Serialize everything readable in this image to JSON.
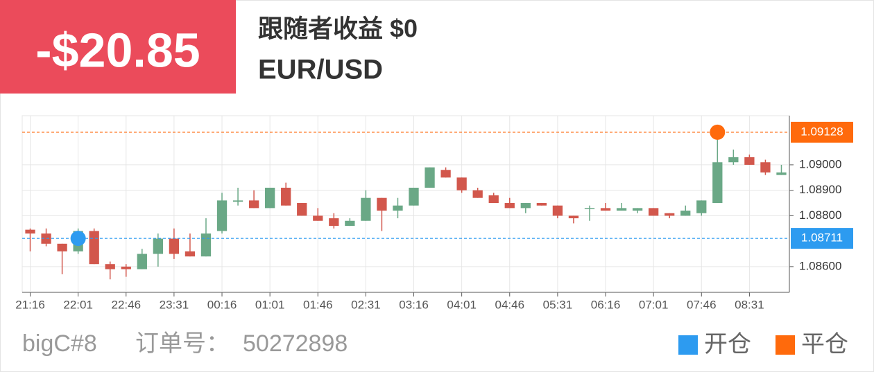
{
  "header": {
    "pnl": "-$20.85",
    "follower_profit": "跟随者收益 $0",
    "symbol": "EUR/USD"
  },
  "chart_data": {
    "type": "candlestick",
    "categories": [
      "21:16",
      null,
      null,
      "22:01",
      null,
      null,
      "22:46",
      null,
      null,
      "23:31",
      null,
      null,
      "00:16",
      null,
      null,
      "01:01",
      null,
      null,
      "01:46",
      null,
      null,
      "02:31",
      null,
      null,
      "03:16",
      null,
      null,
      "04:01",
      null,
      null,
      "04:46",
      null,
      null,
      "05:31",
      null,
      null,
      "06:16",
      null,
      null,
      "07:01",
      null,
      null,
      "07:46",
      null,
      null,
      "08:31",
      null,
      null
    ],
    "open": [
      1.08745,
      1.0873,
      1.0869,
      1.0866,
      1.0874,
      1.0861,
      1.086,
      1.0859,
      1.0865,
      1.0871,
      1.0866,
      1.0864,
      1.0874,
      1.08855,
      1.0886,
      1.0883,
      1.0891,
      1.0885,
      1.088,
      1.0879,
      1.0876,
      1.0878,
      1.0887,
      1.0882,
      1.0884,
      1.0891,
      1.0898,
      1.0895,
      1.089,
      1.0888,
      1.0885,
      1.0883,
      1.0885,
      1.0884,
      1.088,
      1.0883,
      1.0883,
      1.0882,
      1.0882,
      1.0883,
      1.0881,
      1.088,
      1.0881,
      1.0885,
      1.0901,
      1.0903,
      1.0901,
      1.0896
    ],
    "high": [
      1.0875,
      1.0875,
      1.0869,
      1.0875,
      1.0875,
      1.0862,
      1.0861,
      1.0867,
      1.0873,
      1.0875,
      1.0873,
      1.0879,
      1.0889,
      1.0891,
      1.089,
      1.0891,
      1.0893,
      1.0885,
      1.0883,
      1.0881,
      1.0879,
      1.089,
      1.0887,
      1.0887,
      1.0891,
      1.0899,
      1.0899,
      1.0895,
      1.0891,
      1.0889,
      1.0887,
      1.0885,
      1.0885,
      1.0884,
      1.088,
      1.0884,
      1.0885,
      1.0885,
      1.0883,
      1.0883,
      1.0881,
      1.0884,
      1.0886,
      1.0913,
      1.0906,
      1.0904,
      1.0902,
      1.09
    ],
    "low": [
      1.0866,
      1.0868,
      1.0857,
      1.0865,
      1.0861,
      1.0855,
      1.0856,
      1.0859,
      1.086,
      1.0863,
      1.0864,
      1.0864,
      1.0873,
      1.0884,
      1.0883,
      1.0883,
      1.0884,
      1.088,
      1.0878,
      1.0875,
      1.0876,
      1.0878,
      1.0874,
      1.0879,
      1.0884,
      1.0891,
      1.0895,
      1.0889,
      1.0887,
      1.0885,
      1.0883,
      1.0881,
      1.0884,
      1.0879,
      1.0877,
      1.0878,
      1.0882,
      1.0882,
      1.0881,
      1.088,
      1.0879,
      1.088,
      1.088,
      1.0885,
      1.09,
      1.09,
      1.0896,
      1.0896
    ],
    "close": [
      1.0873,
      1.0869,
      1.0866,
      1.0874,
      1.0861,
      1.0859,
      1.0859,
      1.0865,
      1.0871,
      1.0865,
      1.0864,
      1.0873,
      1.0886,
      1.0886,
      1.0883,
      1.0891,
      1.0884,
      1.088,
      1.0878,
      1.0876,
      1.0878,
      1.0887,
      1.0882,
      1.0884,
      1.0891,
      1.0899,
      1.0895,
      1.089,
      1.0887,
      1.0885,
      1.0883,
      1.0885,
      1.0884,
      1.088,
      1.0879,
      1.0883,
      1.0882,
      1.0883,
      1.0883,
      1.088,
      1.088,
      1.0882,
      1.0886,
      1.0901,
      1.0903,
      1.09,
      1.0897,
      1.0897
    ],
    "up_color": "#6aa886",
    "down_color": "#d2574c",
    "ylim": [
      1.08499,
      1.09193
    ],
    "yticks": [
      {
        "value": 1.086,
        "label": "1.08600"
      },
      {
        "value": 1.088,
        "label": "1.08800"
      },
      {
        "value": 1.089,
        "label": "1.08900"
      },
      {
        "value": 1.09,
        "label": "1.09000"
      }
    ],
    "grid": true,
    "markers": [
      {
        "name": "开仓",
        "color": "#2d9bf0",
        "index": 3,
        "value": 1.08711
      },
      {
        "name": "平仓",
        "color": "#ff6a0c",
        "index": 43,
        "value": 1.09128
      }
    ]
  },
  "footer": {
    "account": "bigC#8",
    "order_label": "订单号：",
    "order_id": "50272898"
  }
}
